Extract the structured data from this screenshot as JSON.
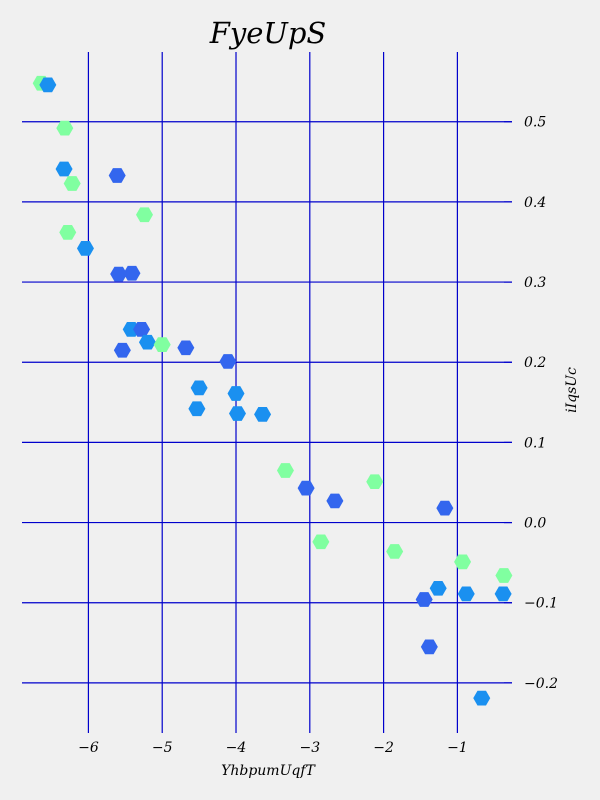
{
  "chart_data": {
    "type": "scatter",
    "title": "FyeUpS",
    "xlabel": "YhbpumUqfT",
    "ylabel": "iIqsUc",
    "xlim": [
      -6.9,
      -0.26
    ],
    "ylim": [
      -0.255,
      0.587
    ],
    "x_ticks": [
      -6,
      -5,
      -4,
      -3,
      -2,
      -1
    ],
    "x_tick_labels": [
      "−6",
      "−5",
      "−4",
      "−3",
      "−2",
      "−1"
    ],
    "y_ticks": [
      -0.2,
      -0.1,
      0.0,
      0.1,
      0.2,
      0.3,
      0.4,
      0.5
    ],
    "y_tick_labels": [
      "−0.2",
      "−0.1",
      "0.0",
      "0.1",
      "0.2",
      "0.3",
      "0.4",
      "0.5"
    ],
    "y_axis_position": "right",
    "grid": true,
    "marker": "hexagon",
    "colors": {
      "light_green": "#80ffa0",
      "blue": "#1a90f0",
      "royal_blue": "#3366ee",
      "grid": "#0000cc",
      "background": "#f0f0f0"
    },
    "points": [
      {
        "x": -6.64,
        "y": 0.548,
        "color": "#80ffa0"
      },
      {
        "x": -6.55,
        "y": 0.546,
        "color": "#1a90f0"
      },
      {
        "x": -6.32,
        "y": 0.492,
        "color": "#80ffa0"
      },
      {
        "x": -6.33,
        "y": 0.441,
        "color": "#1a90f0"
      },
      {
        "x": -6.22,
        "y": 0.423,
        "color": "#80ffa0"
      },
      {
        "x": -5.61,
        "y": 0.433,
        "color": "#3366ee"
      },
      {
        "x": -5.24,
        "y": 0.384,
        "color": "#80ffa0"
      },
      {
        "x": -6.28,
        "y": 0.362,
        "color": "#80ffa0"
      },
      {
        "x": -6.04,
        "y": 0.342,
        "color": "#1a90f0"
      },
      {
        "x": -5.59,
        "y": 0.31,
        "color": "#3366ee"
      },
      {
        "x": -5.41,
        "y": 0.311,
        "color": "#3366ee"
      },
      {
        "x": -5.42,
        "y": 0.241,
        "color": "#1a90f0"
      },
      {
        "x": -5.28,
        "y": 0.241,
        "color": "#3366ee"
      },
      {
        "x": -5.2,
        "y": 0.225,
        "color": "#1a90f0"
      },
      {
        "x": -5.54,
        "y": 0.215,
        "color": "#3366ee"
      },
      {
        "x": -5.0,
        "y": 0.222,
        "color": "#80ffa0"
      },
      {
        "x": -4.68,
        "y": 0.218,
        "color": "#3366ee"
      },
      {
        "x": -4.11,
        "y": 0.201,
        "color": "#3366ee"
      },
      {
        "x": -4.5,
        "y": 0.168,
        "color": "#1a90f0"
      },
      {
        "x": -4.53,
        "y": 0.142,
        "color": "#1a90f0"
      },
      {
        "x": -4.0,
        "y": 0.161,
        "color": "#1a90f0"
      },
      {
        "x": -3.98,
        "y": 0.136,
        "color": "#1a90f0"
      },
      {
        "x": -3.64,
        "y": 0.135,
        "color": "#1a90f0"
      },
      {
        "x": -3.33,
        "y": 0.065,
        "color": "#80ffa0"
      },
      {
        "x": -3.05,
        "y": 0.043,
        "color": "#3366ee"
      },
      {
        "x": -2.66,
        "y": 0.027,
        "color": "#3366ee"
      },
      {
        "x": -2.12,
        "y": 0.051,
        "color": "#80ffa0"
      },
      {
        "x": -1.17,
        "y": 0.018,
        "color": "#3366ee"
      },
      {
        "x": -2.85,
        "y": -0.024,
        "color": "#80ffa0"
      },
      {
        "x": -1.85,
        "y": -0.036,
        "color": "#80ffa0"
      },
      {
        "x": -0.93,
        "y": -0.049,
        "color": "#80ffa0"
      },
      {
        "x": -0.37,
        "y": -0.066,
        "color": "#80ffa0"
      },
      {
        "x": -1.26,
        "y": -0.082,
        "color": "#1a90f0"
      },
      {
        "x": -0.88,
        "y": -0.089,
        "color": "#1a90f0"
      },
      {
        "x": -0.38,
        "y": -0.089,
        "color": "#1a90f0"
      },
      {
        "x": -1.45,
        "y": -0.096,
        "color": "#3366ee"
      },
      {
        "x": -1.38,
        "y": -0.155,
        "color": "#3366ee"
      },
      {
        "x": -0.67,
        "y": -0.219,
        "color": "#1a90f0"
      }
    ]
  }
}
